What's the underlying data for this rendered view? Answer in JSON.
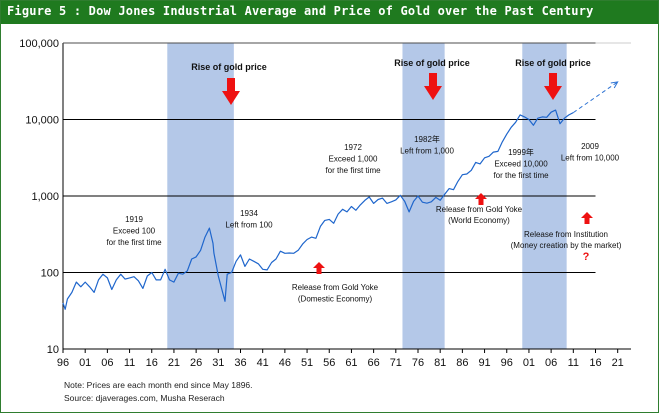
{
  "header": {
    "title": "Figure 5 : Dow Jones Industrial Average and Price of Gold over the Past Century"
  },
  "chart_data": {
    "type": "line",
    "title": "",
    "xlabel": "",
    "ylabel": "",
    "yscale": "log",
    "ylim": [
      10,
      100000
    ],
    "xlim": [
      1896,
      2024
    ],
    "y_tick_labels": [
      "10",
      "100",
      "1,000",
      "10,000",
      "100,000"
    ],
    "y_tick_values": [
      10,
      100,
      1000,
      10000,
      100000
    ],
    "x_tick_labels": [
      "96",
      "01",
      "06",
      "11",
      "16",
      "21",
      "26",
      "31",
      "36",
      "41",
      "46",
      "51",
      "56",
      "61",
      "66",
      "71",
      "76",
      "81",
      "86",
      "91",
      "96",
      "01",
      "06",
      "11",
      "16",
      "21"
    ],
    "x_tick_years": [
      1896,
      1901,
      1906,
      1911,
      1916,
      1921,
      1926,
      1931,
      1936,
      1941,
      1946,
      1951,
      1956,
      1961,
      1966,
      1971,
      1976,
      1981,
      1986,
      1991,
      1996,
      2001,
      2006,
      2011,
      2016,
      2021
    ],
    "grid": "horizontal",
    "shaded_periods": [
      {
        "start": 1919.5,
        "end": 1934.5
      },
      {
        "start": 1972.5,
        "end": 1982
      },
      {
        "start": 1999.5,
        "end": 2009.5
      }
    ],
    "series": [
      {
        "name": "",
        "color": "#1f66cc",
        "x": [
          1896,
          1896.5,
          1897,
          1898,
          1899,
          1900,
          1901,
          1902,
          1903,
          1904,
          1905,
          1906,
          1907,
          1908,
          1909,
          1910,
          1911,
          1912,
          1913,
          1914,
          1915,
          1916,
          1917,
          1918,
          1919,
          1920,
          1921,
          1922,
          1923,
          1924,
          1925,
          1926,
          1927,
          1928,
          1929,
          1929.8,
          1930,
          1931,
          1932.5,
          1933,
          1934,
          1935,
          1936,
          1937,
          1938,
          1939,
          1940,
          1941,
          1942,
          1943,
          1944,
          1945,
          1946,
          1947,
          1948,
          1949,
          1950,
          1951,
          1952,
          1953,
          1954,
          1955,
          1956,
          1957,
          1958,
          1959,
          1960,
          1961,
          1962,
          1963,
          1964,
          1965,
          1966,
          1967,
          1968,
          1969,
          1970,
          1971,
          1972,
          1973,
          1974,
          1975,
          1976,
          1977,
          1978,
          1979,
          1980,
          1981,
          1982,
          1983,
          1984,
          1985,
          1986,
          1987,
          1988,
          1989,
          1990,
          1991,
          1992,
          1993,
          1994,
          1995,
          1996,
          1997,
          1998,
          1999,
          2000,
          2001,
          2002,
          2003,
          2004,
          2005,
          2006,
          2007,
          2008,
          2009,
          2010,
          2011
        ],
        "y": [
          40,
          33,
          45,
          55,
          75,
          65,
          75,
          65,
          55,
          80,
          95,
          85,
          60,
          80,
          95,
          82,
          85,
          88,
          78,
          62,
          90,
          100,
          80,
          80,
          110,
          80,
          75,
          98,
          95,
          105,
          150,
          160,
          195,
          290,
          380,
          240,
          180,
          90,
          42,
          95,
          100,
          140,
          170,
          120,
          150,
          140,
          130,
          110,
          108,
          135,
          150,
          190,
          178,
          180,
          178,
          195,
          235,
          270,
          290,
          280,
          400,
          480,
          495,
          440,
          580,
          670,
          620,
          730,
          650,
          765,
          875,
          970,
          800,
          900,
          940,
          800,
          840,
          890,
          1020,
          850,
          620,
          850,
          1000,
          830,
          805,
          840,
          960,
          880,
          1050,
          1250,
          1210,
          1550,
          1900,
          1940,
          2170,
          2750,
          2630,
          3160,
          3300,
          3750,
          3830,
          5100,
          6450,
          7900,
          9200,
          11500,
          10800,
          10000,
          8400,
          10400,
          10800,
          10700,
          12450,
          13260,
          8800,
          10400,
          11500,
          12300
        ]
      },
      {
        "name": "",
        "color": "#2f74d4",
        "style": "dashed",
        "x": [
          2011,
          2021
        ],
        "y": [
          12300,
          31000
        ]
      }
    ],
    "annotations": [
      {
        "text": "Rise of gold price",
        "kind": "heading"
      },
      {
        "text": "Rise of gold price",
        "kind": "heading"
      },
      {
        "text": "Rise of gold price",
        "kind": "heading"
      },
      {
        "lines": [
          "1919",
          "Exceed 100",
          "for the first time"
        ]
      },
      {
        "lines": [
          "1934",
          "Left from 100"
        ]
      },
      {
        "lines": [
          "1972",
          "Exceed 1,000",
          "for the first time"
        ]
      },
      {
        "lines": [
          "1982年",
          "Left from 1,000"
        ]
      },
      {
        "lines": [
          "1999年",
          "Exceed 10,000",
          "for the first time"
        ]
      },
      {
        "lines": [
          "2009",
          "Left from 10,000"
        ]
      },
      {
        "lines": [
          "Release from Gold Yoke",
          "(Domestic Economy)"
        ]
      },
      {
        "lines": [
          "Release from Gold Yoke",
          "(World Economy)"
        ]
      },
      {
        "lines": [
          "Release from Institution",
          "(Money creation by the market)"
        ]
      },
      {
        "text": "?",
        "kind": "question"
      }
    ]
  },
  "footnotes": {
    "note": "Note: Prices are each month end since May 1896.",
    "source": "Source: djaverages.com, Musha Reserach"
  },
  "colors": {
    "title_bar": "#1f7a1f",
    "shade": "#b4c8e8",
    "line": "#1f66cc",
    "arrow": "#ee1111"
  }
}
